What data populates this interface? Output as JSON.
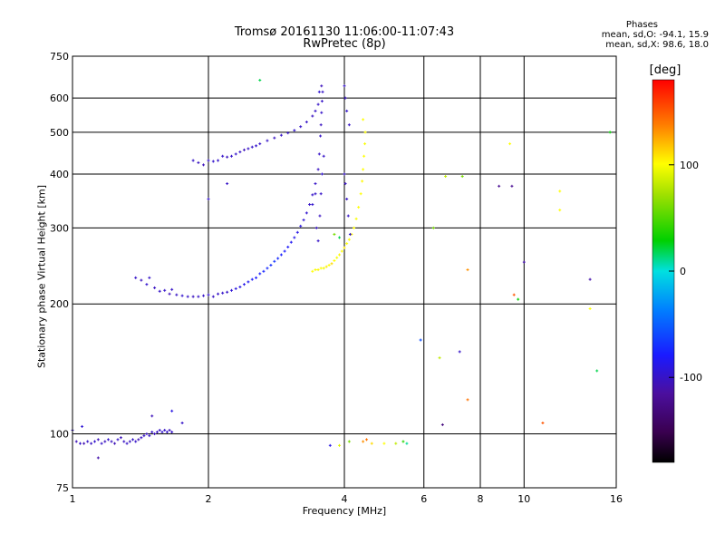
{
  "header": {
    "title_line1": "Tromsø 20161130 11:06:00-11:07:43",
    "title_line2": "RwPretec (8p)"
  },
  "phases": {
    "title": "Phases",
    "line_o": "mean, sd,O: -94.1, 15.9",
    "line_x": "mean, sd,X:  98.6, 18.0"
  },
  "colorbar": {
    "title": "[deg]",
    "tick_labels": [
      "100",
      "0",
      "-100"
    ],
    "range": [
      -180,
      180
    ]
  },
  "chart_data": {
    "type": "scatter",
    "title": "Tromsø 20161130 11:06:00-11:07:43",
    "subtitle": "RwPretec (8p)",
    "xlabel": "Frequency [MHz]",
    "ylabel": "Stationary phase Virtual Height [km]",
    "x_scale": "log",
    "y_scale": "log",
    "xlim": [
      1,
      16
    ],
    "ylim": [
      75,
      750
    ],
    "x_ticks": [
      1,
      2,
      4,
      6,
      8,
      10,
      16
    ],
    "x_tick_labels": [
      "1",
      "2",
      "4",
      "6",
      "8",
      "10",
      "16"
    ],
    "x_gridlines": [
      2,
      4,
      6,
      8,
      10
    ],
    "y_ticks": [
      75,
      100,
      200,
      300,
      400,
      500,
      600,
      750
    ],
    "y_tick_labels": [
      "75",
      "100",
      "200",
      "300",
      "400",
      "500",
      "600",
      "750"
    ],
    "y_gridlines": [
      100,
      200,
      300,
      400,
      500,
      600
    ],
    "grid": true,
    "color_encoding": "phase [deg]",
    "series": [
      {
        "points": [
          [
            1.0,
            102,
            -100
          ],
          [
            1.02,
            96,
            -105
          ],
          [
            1.04,
            95,
            -100
          ],
          [
            1.06,
            95,
            -108
          ],
          [
            1.08,
            96,
            -100
          ],
          [
            1.1,
            95,
            -102
          ],
          [
            1.12,
            96,
            -98
          ],
          [
            1.14,
            97,
            -105
          ],
          [
            1.16,
            95,
            -100
          ],
          [
            1.18,
            96,
            -103
          ],
          [
            1.2,
            97,
            -99
          ],
          [
            1.22,
            96,
            -102
          ],
          [
            1.24,
            95,
            -106
          ],
          [
            1.26,
            97,
            -100
          ],
          [
            1.28,
            98,
            -104
          ],
          [
            1.3,
            96,
            -101
          ],
          [
            1.32,
            95,
            -100
          ],
          [
            1.34,
            96,
            -103
          ],
          [
            1.36,
            97,
            -99
          ],
          [
            1.38,
            96,
            -100
          ],
          [
            1.4,
            97,
            -106
          ],
          [
            1.42,
            98,
            -102
          ],
          [
            1.44,
            99,
            -100
          ],
          [
            1.46,
            100,
            -103
          ],
          [
            1.48,
            99,
            -99
          ],
          [
            1.5,
            101,
            -100
          ],
          [
            1.52,
            100,
            -104
          ],
          [
            1.54,
            101,
            -101
          ],
          [
            1.56,
            102,
            -100
          ],
          [
            1.58,
            101,
            -97
          ],
          [
            1.6,
            102,
            -100
          ],
          [
            1.62,
            101,
            -100
          ],
          [
            1.64,
            102,
            -103
          ],
          [
            1.66,
            101,
            -99
          ],
          [
            1.5,
            110,
            -105
          ],
          [
            1.66,
            113,
            -90
          ],
          [
            1.75,
            106,
            -100
          ],
          [
            1.14,
            88,
            -110
          ],
          [
            1.05,
            104,
            -95
          ],
          [
            1.38,
            230,
            -100
          ],
          [
            1.42,
            227,
            -103
          ],
          [
            1.46,
            222,
            -98
          ],
          [
            1.48,
            230,
            -100
          ],
          [
            1.52,
            218,
            -102
          ],
          [
            1.56,
            214,
            -100
          ],
          [
            1.6,
            215,
            -99
          ],
          [
            1.64,
            211,
            -104
          ],
          [
            1.66,
            216,
            -100
          ],
          [
            1.7,
            210,
            -101
          ],
          [
            1.75,
            209,
            -98
          ],
          [
            1.8,
            208,
            -100
          ],
          [
            1.85,
            208,
            -103
          ],
          [
            1.9,
            208,
            -100
          ],
          [
            1.95,
            209,
            -100
          ],
          [
            2.0,
            210,
            -98
          ],
          [
            2.05,
            208,
            -102
          ],
          [
            2.1,
            211,
            -100
          ],
          [
            2.15,
            212,
            -99
          ],
          [
            2.2,
            213,
            -100
          ],
          [
            2.25,
            215,
            -95
          ],
          [
            2.3,
            217,
            -92
          ],
          [
            2.35,
            219,
            -90
          ],
          [
            2.4,
            222,
            -88
          ],
          [
            2.45,
            225,
            -85
          ],
          [
            2.5,
            228,
            -82
          ],
          [
            2.55,
            230,
            -80
          ],
          [
            2.6,
            235,
            -78
          ],
          [
            2.65,
            238,
            -76
          ],
          [
            2.7,
            242,
            -74
          ],
          [
            2.75,
            246,
            -72
          ],
          [
            2.8,
            251,
            -70
          ],
          [
            2.85,
            255,
            -74
          ],
          [
            2.9,
            260,
            -78
          ],
          [
            2.95,
            265,
            -80
          ],
          [
            3.0,
            271,
            -82
          ],
          [
            3.05,
            278,
            -85
          ],
          [
            3.1,
            285,
            -88
          ],
          [
            3.15,
            293,
            -90
          ],
          [
            3.2,
            303,
            -92
          ],
          [
            3.25,
            313,
            -95
          ],
          [
            3.3,
            325,
            -97
          ],
          [
            3.35,
            340,
            -100
          ],
          [
            3.4,
            358,
            -100
          ],
          [
            3.45,
            380,
            -100
          ],
          [
            3.5,
            410,
            -102
          ],
          [
            3.52,
            445,
            -100
          ],
          [
            3.54,
            490,
            -100
          ],
          [
            3.55,
            520,
            -103
          ],
          [
            3.56,
            555,
            -100
          ],
          [
            3.57,
            590,
            -100
          ],
          [
            3.58,
            620,
            -100
          ],
          [
            3.56,
            640,
            -104
          ],
          [
            3.52,
            620,
            -96
          ],
          [
            3.4,
            340,
            -98
          ],
          [
            3.45,
            360,
            -99
          ],
          [
            3.47,
            300,
            -101
          ],
          [
            3.5,
            280,
            -100
          ],
          [
            3.53,
            320,
            -102
          ],
          [
            3.55,
            360,
            -100
          ],
          [
            3.57,
            400,
            -97
          ],
          [
            3.6,
            440,
            -100
          ],
          [
            1.85,
            430,
            -100
          ],
          [
            1.9,
            425,
            -102
          ],
          [
            1.95,
            420,
            -104
          ],
          [
            2.0,
            430,
            -100
          ],
          [
            2.05,
            428,
            -98
          ],
          [
            2.1,
            430,
            -100
          ],
          [
            2.15,
            440,
            -100
          ],
          [
            2.2,
            438,
            -103
          ],
          [
            2.25,
            440,
            -100
          ],
          [
            2.3,
            445,
            -99
          ],
          [
            2.35,
            450,
            -100
          ],
          [
            2.4,
            455,
            -104
          ],
          [
            2.45,
            458,
            -100
          ],
          [
            2.5,
            462,
            -100
          ],
          [
            2.55,
            465,
            -98
          ],
          [
            2.6,
            470,
            -100
          ],
          [
            2.7,
            478,
            -100
          ],
          [
            2.8,
            485,
            -102
          ],
          [
            2.9,
            492,
            -100
          ],
          [
            3.0,
            498,
            -100
          ],
          [
            3.1,
            505,
            -97
          ],
          [
            3.2,
            515,
            -100
          ],
          [
            3.3,
            528,
            -100
          ],
          [
            3.4,
            545,
            -102
          ],
          [
            3.45,
            560,
            -100
          ],
          [
            3.5,
            580,
            -100
          ],
          [
            2.0,
            350,
            -100
          ],
          [
            2.2,
            380,
            -100
          ],
          [
            2.6,
            660,
            20
          ],
          [
            3.4,
            238,
            100
          ],
          [
            3.45,
            240,
            98
          ],
          [
            3.5,
            240,
            102
          ],
          [
            3.55,
            242,
            100
          ],
          [
            3.6,
            242,
            95
          ],
          [
            3.65,
            244,
            105
          ],
          [
            3.7,
            246,
            100
          ],
          [
            3.75,
            248,
            110
          ],
          [
            3.8,
            252,
            100
          ],
          [
            3.85,
            256,
            98
          ],
          [
            3.9,
            260,
            102
          ],
          [
            3.95,
            265,
            100
          ],
          [
            4.0,
            270,
            105
          ],
          [
            4.05,
            276,
            100
          ],
          [
            4.1,
            282,
            100
          ],
          [
            4.15,
            290,
            103
          ],
          [
            4.2,
            300,
            100
          ],
          [
            4.25,
            315,
            98
          ],
          [
            4.3,
            335,
            100
          ],
          [
            4.35,
            360,
            100
          ],
          [
            4.38,
            385,
            102
          ],
          [
            4.4,
            410,
            100
          ],
          [
            4.42,
            440,
            100
          ],
          [
            4.44,
            470,
            98
          ],
          [
            4.45,
            500,
            100
          ],
          [
            4.4,
            535,
            100
          ],
          [
            3.9,
            285,
            20
          ],
          [
            3.8,
            290,
            60
          ],
          [
            4.0,
            640,
            -100
          ],
          [
            4.02,
            600,
            -100
          ],
          [
            4.05,
            560,
            -98
          ],
          [
            4.1,
            520,
            -100
          ],
          [
            4.0,
            400,
            -100
          ],
          [
            4.02,
            380,
            -102
          ],
          [
            4.05,
            350,
            -100
          ],
          [
            4.08,
            320,
            -100
          ],
          [
            4.12,
            290,
            -96
          ],
          [
            3.72,
            94,
            -90
          ],
          [
            3.9,
            94,
            90
          ],
          [
            4.1,
            96,
            60
          ],
          [
            4.4,
            96,
            130
          ],
          [
            4.48,
            97,
            140
          ],
          [
            4.6,
            95,
            110
          ],
          [
            4.9,
            95,
            100
          ],
          [
            5.2,
            95,
            80
          ],
          [
            5.4,
            96,
            40
          ],
          [
            5.5,
            95,
            10
          ],
          [
            5.9,
            165,
            -60
          ],
          [
            6.3,
            300,
            60
          ],
          [
            6.5,
            150,
            80
          ],
          [
            6.6,
            105,
            -130
          ],
          [
            6.7,
            395,
            80
          ],
          [
            7.3,
            395,
            60
          ],
          [
            7.2,
            155,
            -100
          ],
          [
            7.5,
            240,
            130
          ],
          [
            7.5,
            120,
            140
          ],
          [
            8.8,
            375,
            -120
          ],
          [
            9.3,
            470,
            100
          ],
          [
            9.4,
            375,
            -120
          ],
          [
            9.5,
            210,
            150
          ],
          [
            9.7,
            205,
            30
          ],
          [
            10.0,
            250,
            -110
          ],
          [
            11.0,
            106,
            150
          ],
          [
            12.0,
            365,
            100
          ],
          [
            12.0,
            330,
            100
          ],
          [
            14.0,
            195,
            100
          ],
          [
            14.0,
            228,
            -110
          ],
          [
            14.5,
            140,
            20
          ],
          [
            15.5,
            500,
            30
          ]
        ]
      }
    ]
  }
}
